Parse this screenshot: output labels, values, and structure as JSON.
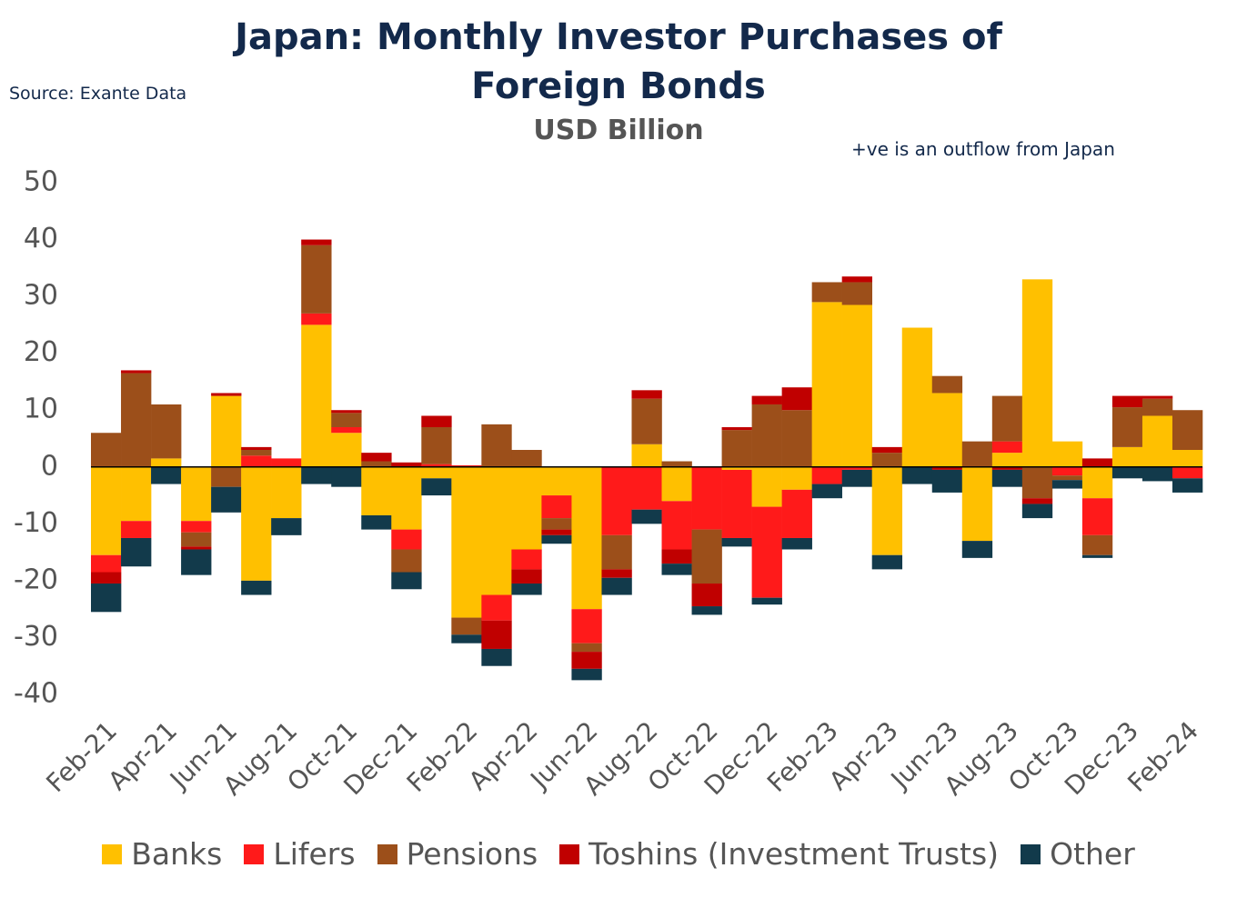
{
  "chart_data": {
    "type": "stacked-bar",
    "title": "Japan: Monthly Investor Purchases of Foreign Bonds",
    "subtitle": "USD Billion",
    "source": "Source: Exante Data",
    "annotation": "+ve  is an outflow from Japan",
    "categories": [
      "Feb-21",
      null,
      "Apr-21",
      null,
      "Jun-21",
      null,
      "Aug-21",
      null,
      "Oct-21",
      null,
      "Dec-21",
      null,
      "Feb-22",
      null,
      "Apr-22",
      null,
      "Jun-22",
      null,
      "Aug-22",
      null,
      "Oct-22",
      null,
      "Dec-22",
      null,
      "Feb-23",
      null,
      "Apr-23",
      null,
      "Jun-23",
      null,
      "Aug-23",
      null,
      "Oct-23",
      null,
      "Dec-23",
      null,
      "Feb-24"
    ],
    "series": [
      {
        "name": "Banks",
        "color": "#ffc000",
        "values": [
          -15.5,
          -9.5,
          1.5,
          -9.5,
          12.5,
          -20,
          -9,
          25,
          6,
          -8.5,
          -11,
          -2,
          -26.5,
          -22.5,
          -14.5,
          -5,
          -25,
          0,
          4,
          -6,
          0,
          -0.5,
          -7,
          -4,
          29,
          28.5,
          -15.5,
          24.5,
          13,
          -13,
          2.5,
          33,
          4.5,
          -5.5,
          3.5,
          9,
          3
        ]
      },
      {
        "name": "Lifers",
        "color": "#ff1a1a",
        "values": [
          -3,
          -3,
          0,
          -2,
          0,
          2,
          1.5,
          2,
          1,
          0,
          -3.5,
          0.5,
          0.3,
          -4.5,
          -3.5,
          -4,
          -6,
          -12,
          -7.5,
          -8.5,
          -11,
          -12,
          -16,
          -8.5,
          -3,
          -0.5,
          0,
          0,
          0,
          0,
          2,
          0,
          -1.5,
          -6.5,
          0,
          0,
          -2
        ]
      },
      {
        "name": "Pensions",
        "color": "#9c4f1a",
        "values": [
          6,
          16.5,
          9.5,
          -2.5,
          -3.5,
          1,
          0,
          12,
          2.5,
          1,
          -4,
          6.5,
          -3,
          7.5,
          3,
          -2,
          -1.5,
          -6,
          8,
          1,
          -9.5,
          6.5,
          11,
          10,
          3.5,
          4,
          2.5,
          0,
          3,
          4.5,
          8,
          -5.5,
          -0.8,
          -3.5,
          7,
          3,
          7
        ]
      },
      {
        "name": "Toshins (Investment Trusts)",
        "color": "#c00000",
        "values": [
          -2,
          0.5,
          0,
          -0.5,
          0.5,
          0.5,
          0,
          1,
          0.5,
          1.5,
          0.8,
          2,
          0,
          -5,
          -2.5,
          -1,
          -3,
          -1.5,
          1.5,
          -2.5,
          -4,
          0.5,
          1.5,
          4,
          0,
          1,
          1,
          0,
          -0.5,
          0,
          -0.5,
          -1,
          0,
          1.5,
          2,
          0.5,
          0
        ]
      },
      {
        "name": "Other",
        "color": "#123a4b",
        "values": [
          -5,
          -5,
          -3,
          -4.5,
          -4.5,
          -2.5,
          -3,
          -3,
          -3.5,
          -2.5,
          -3,
          -3,
          -1.5,
          -3,
          -2,
          -1.5,
          -2,
          -3,
          -2.5,
          -2,
          -1.5,
          -1.5,
          -1.2,
          -2,
          -2.5,
          -3,
          -2.5,
          -3,
          -4,
          -3,
          -3,
          -2.5,
          -1.5,
          -0.5,
          -2,
          -2.5,
          -2.5
        ]
      }
    ],
    "ylim": [
      -40,
      50
    ],
    "yticks": [
      -40,
      -30,
      -20,
      -10,
      0,
      10,
      20,
      30,
      40,
      50
    ],
    "grid": false,
    "legend": "bottom"
  }
}
